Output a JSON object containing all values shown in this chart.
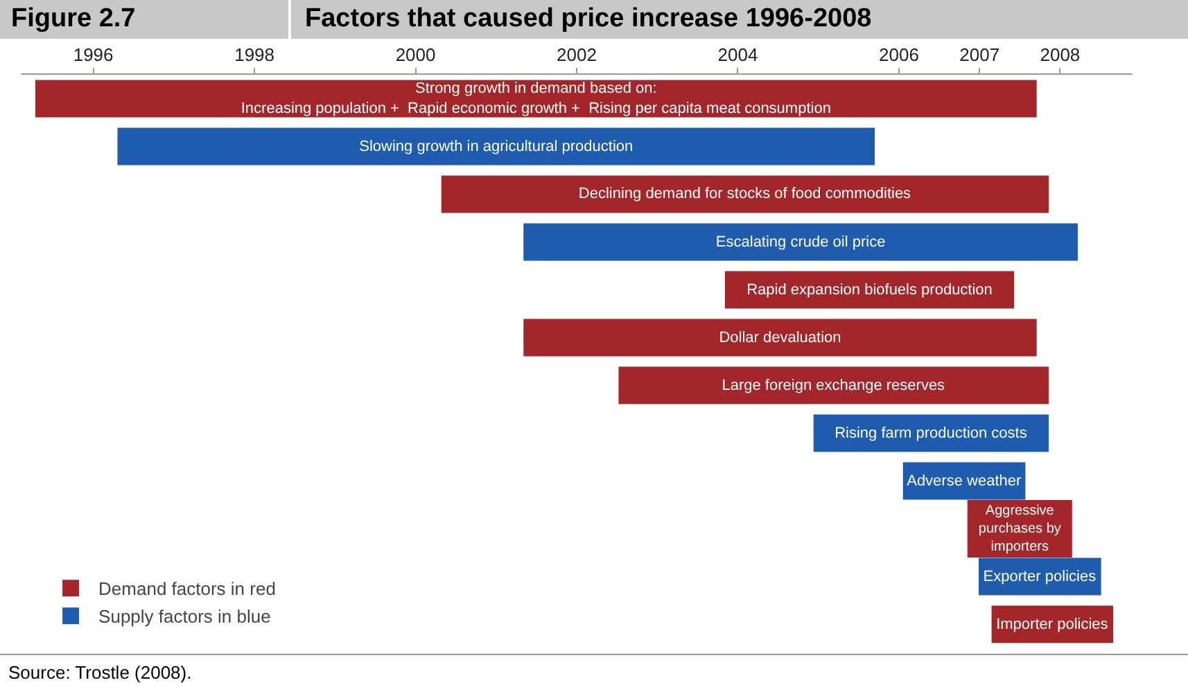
{
  "chart_data": {
    "type": "bar",
    "orientation": "horizontal",
    "subtitle": "Figure 2.7",
    "title": "Factors that caused price increase 1996-2008",
    "categories": [
      "Strong growth in demand based on:\nIncreasing population +  Rapid economic growth +  Rising per capita meat consumption",
      "Slowing growth in agricultural production",
      "Declining demand for stocks of food commodities",
      "Escalating crude oil price",
      "Rapid expansion biofuels production",
      "Dollar devaluation",
      "Large foreign exchange reserves",
      "Rising farm production costs",
      "Adverse weather",
      "Aggressive\npurchases by\nimporters",
      "Exporter policies",
      "Importer policies"
    ],
    "series": [
      {
        "name": "Demand factors in red",
        "color": "#a3262a",
        "values": [
          12.43,
          null,
          7.54,
          null,
          3.59,
          6.37,
          5.34,
          null,
          null,
          1.3,
          null,
          1.51
        ],
        "base": [
          1995.28,
          null,
          2000.32,
          null,
          2003.84,
          2001.34,
          2002.52,
          null,
          null,
          2006.85,
          null,
          2007.15
        ]
      },
      {
        "name": "Supply factors in blue",
        "color": "#1f5cae",
        "values": [
          null,
          9.4,
          null,
          6.88,
          null,
          null,
          null,
          2.92,
          1.52,
          null,
          1.52,
          null
        ],
        "base": [
          null,
          1996.3,
          null,
          2001.34,
          null,
          null,
          null,
          2004.94,
          2006.05,
          null,
          2006.99,
          null
        ]
      }
    ],
    "xlim": [
      1995.1,
      2008.9
    ],
    "xticks": [
      1996,
      1998,
      2000,
      2002,
      2004,
      2006,
      2007,
      2008
    ],
    "tick_labels": "x",
    "grid": false,
    "legend": "bottom left",
    "annotations": [
      "Source: Trostle (2008)."
    ]
  }
}
